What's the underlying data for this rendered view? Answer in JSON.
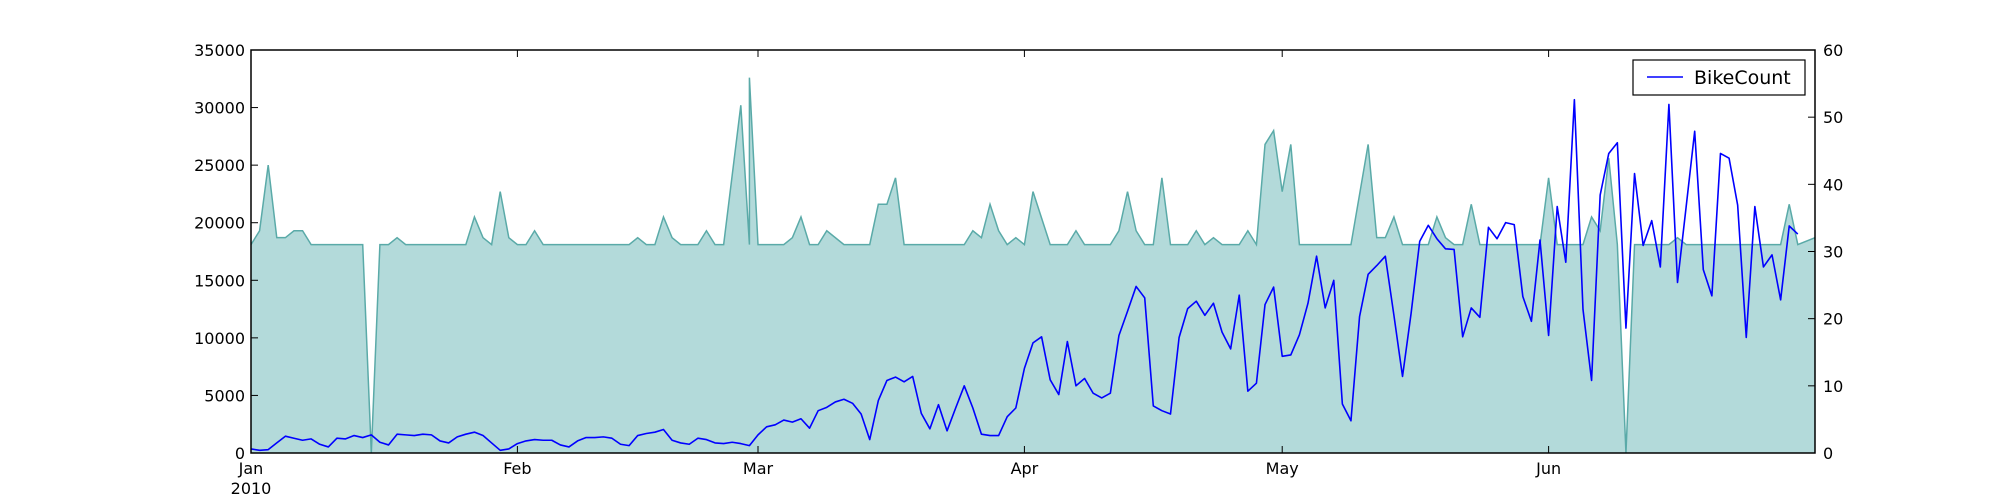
{
  "chart_data": {
    "type": "line",
    "x_start_label": "2010-01-01",
    "x_tick_labels": [
      {
        "date": "2010-01-01",
        "label": "Jan",
        "sublabel": "2010"
      },
      {
        "date": "2010-02-01",
        "label": "Feb",
        "sublabel": ""
      },
      {
        "date": "2010-03-01",
        "label": "Mar",
        "sublabel": ""
      },
      {
        "date": "2010-04-01",
        "label": "Apr",
        "sublabel": ""
      },
      {
        "date": "2010-05-01",
        "label": "May",
        "sublabel": ""
      },
      {
        "date": "2010-06-01",
        "label": "Jun",
        "sublabel": ""
      }
    ],
    "xlim": [
      "2010-01-01",
      "2010-07-02"
    ],
    "left_axis": {
      "ylim": [
        0,
        35000
      ],
      "ticks": [
        0,
        5000,
        10000,
        15000,
        20000,
        25000,
        30000,
        35000
      ]
    },
    "right_axis": {
      "ylim": [
        0,
        60
      ],
      "ticks": [
        0,
        10,
        20,
        30,
        40,
        50,
        60
      ]
    },
    "legend": {
      "placement": "top-right",
      "entries": [
        {
          "label": "BikeCount",
          "color": "#0000ff"
        }
      ]
    },
    "grid": false,
    "colors": {
      "area_fill": "#b3dada",
      "area_edge": "#5aaaa8",
      "line": "#0000ff"
    },
    "area_series": {
      "axis": "left",
      "points": [
        [
          "2010-01-01",
          18100
        ],
        [
          "2010-01-02",
          19300
        ],
        [
          "2010-01-03",
          25000
        ],
        [
          "2010-01-04",
          18700
        ],
        [
          "2010-01-05",
          18700
        ],
        [
          "2010-01-06",
          19300
        ],
        [
          "2010-01-07",
          19300
        ],
        [
          "2010-01-08",
          18100
        ],
        [
          "2010-01-14",
          18100
        ],
        [
          "2010-01-15",
          0
        ],
        [
          "2010-01-16",
          18100
        ],
        [
          "2010-01-17",
          18100
        ],
        [
          "2010-01-18",
          18700
        ],
        [
          "2010-01-19",
          18100
        ],
        [
          "2010-01-26",
          18100
        ],
        [
          "2010-01-27",
          20500
        ],
        [
          "2010-01-28",
          18700
        ],
        [
          "2010-01-29",
          18100
        ],
        [
          "2010-01-30",
          22700
        ],
        [
          "2010-01-31",
          18700
        ],
        [
          "2010-02-01",
          18100
        ],
        [
          "2010-02-02",
          18100
        ],
        [
          "2010-02-03",
          19300
        ],
        [
          "2010-02-04",
          18100
        ],
        [
          "2010-02-14",
          18100
        ],
        [
          "2010-02-15",
          18700
        ],
        [
          "2010-02-16",
          18100
        ],
        [
          "2010-02-17",
          18100
        ],
        [
          "2010-02-18",
          20500
        ],
        [
          "2010-02-19",
          18700
        ],
        [
          "2010-02-20",
          18100
        ],
        [
          "2010-02-22",
          18100
        ],
        [
          "2010-02-23",
          19300
        ],
        [
          "2010-02-24",
          18100
        ],
        [
          "2010-02-28",
          18100
        ],
        [
          "2010-03-01",
          18100
        ],
        [
          "2010-02-25",
          18100
        ],
        [
          "2010-02-27",
          30200
        ],
        [
          "2010-02-28",
          32600
        ],
        [
          "2010-03-01",
          18100
        ],
        [
          "2010-03-04",
          18100
        ],
        [
          "2010-03-05",
          18700
        ],
        [
          "2010-03-06",
          20500
        ],
        [
          "2010-03-07",
          18100
        ],
        [
          "2010-03-08",
          18100
        ],
        [
          "2010-03-09",
          19300
        ],
        [
          "2010-03-11",
          18100
        ],
        [
          "2010-03-14",
          18100
        ],
        [
          "2010-03-15",
          21600
        ],
        [
          "2010-03-16",
          21600
        ],
        [
          "2010-03-17",
          23900
        ],
        [
          "2010-03-18",
          18100
        ],
        [
          "2010-03-25",
          18100
        ],
        [
          "2010-03-26",
          19300
        ],
        [
          "2010-03-27",
          18700
        ],
        [
          "2010-03-28",
          21600
        ],
        [
          "2010-03-29",
          19300
        ],
        [
          "2010-03-30",
          18100
        ],
        [
          "2010-03-31",
          18700
        ],
        [
          "2010-04-01",
          18100
        ],
        [
          "2010-04-02",
          22700
        ],
        [
          "2010-04-04",
          18100
        ],
        [
          "2010-04-06",
          18100
        ],
        [
          "2010-04-07",
          19300
        ],
        [
          "2010-04-08",
          18100
        ],
        [
          "2010-04-11",
          18100
        ],
        [
          "2010-04-12",
          19300
        ],
        [
          "2010-04-13",
          22700
        ],
        [
          "2010-04-14",
          19300
        ],
        [
          "2010-04-15",
          18100
        ],
        [
          "2010-04-16",
          18100
        ],
        [
          "2010-04-17",
          23900
        ],
        [
          "2010-04-18",
          18100
        ],
        [
          "2010-04-20",
          18100
        ],
        [
          "2010-04-21",
          19300
        ],
        [
          "2010-04-22",
          18100
        ],
        [
          "2010-04-23",
          18700
        ],
        [
          "2010-04-24",
          18100
        ],
        [
          "2010-04-26",
          18100
        ],
        [
          "2010-04-27",
          19300
        ],
        [
          "2010-04-28",
          18100
        ],
        [
          "2010-04-29",
          26800
        ],
        [
          "2010-04-30",
          28000
        ],
        [
          "2010-05-01",
          22700
        ],
        [
          "2010-05-02",
          26800
        ],
        [
          "2010-05-03",
          18100
        ],
        [
          "2010-05-09",
          18100
        ],
        [
          "2010-05-11",
          26800
        ],
        [
          "2010-05-12",
          18700
        ],
        [
          "2010-05-13",
          18700
        ],
        [
          "2010-05-14",
          20500
        ],
        [
          "2010-05-15",
          18100
        ],
        [
          "2010-05-18",
          18100
        ],
        [
          "2010-05-19",
          20500
        ],
        [
          "2010-05-20",
          18700
        ],
        [
          "2010-05-21",
          18100
        ],
        [
          "2010-05-22",
          18100
        ],
        [
          "2010-05-23",
          21600
        ],
        [
          "2010-05-24",
          18100
        ],
        [
          "2010-05-31",
          18100
        ],
        [
          "2010-06-01",
          23900
        ],
        [
          "2010-06-02",
          18100
        ],
        [
          "2010-06-05",
          18100
        ],
        [
          "2010-06-06",
          20500
        ],
        [
          "2010-06-07",
          19300
        ],
        [
          "2010-06-08",
          25600
        ],
        [
          "2010-06-09",
          18100
        ],
        [
          "2010-06-10",
          0
        ],
        [
          "2010-06-11",
          18100
        ],
        [
          "2010-06-15",
          18100
        ],
        [
          "2010-06-16",
          18700
        ],
        [
          "2010-06-17",
          18100
        ],
        [
          "2010-06-28",
          18100
        ],
        [
          "2010-06-29",
          21600
        ],
        [
          "2010-06-30",
          18100
        ],
        [
          "2010-07-02",
          18700
        ]
      ]
    },
    "line_series": {
      "name": "BikeCount",
      "axis": "right",
      "points": [
        [
          "2010-01-01",
          0.6
        ],
        [
          "2010-01-02",
          0.4
        ],
        [
          "2010-01-03",
          0.5
        ],
        [
          "2010-01-04",
          1.5
        ],
        [
          "2010-01-05",
          2.5
        ],
        [
          "2010-01-06",
          2.2
        ],
        [
          "2010-01-07",
          1.9
        ],
        [
          "2010-01-08",
          2.1
        ],
        [
          "2010-01-09",
          1.3
        ],
        [
          "2010-01-10",
          0.9
        ],
        [
          "2010-01-11",
          2.2
        ],
        [
          "2010-01-12",
          2.1
        ],
        [
          "2010-01-13",
          2.6
        ],
        [
          "2010-01-14",
          2.3
        ],
        [
          "2010-01-15",
          2.7
        ],
        [
          "2010-01-16",
          1.6
        ],
        [
          "2010-01-17",
          1.2
        ],
        [
          "2010-01-18",
          2.8
        ],
        [
          "2010-01-19",
          2.7
        ],
        [
          "2010-01-20",
          2.6
        ],
        [
          "2010-01-21",
          2.8
        ],
        [
          "2010-01-22",
          2.7
        ],
        [
          "2010-01-23",
          1.8
        ],
        [
          "2010-01-24",
          1.5
        ],
        [
          "2010-01-25",
          2.4
        ],
        [
          "2010-01-26",
          2.8
        ],
        [
          "2010-01-27",
          3.1
        ],
        [
          "2010-01-28",
          2.6
        ],
        [
          "2010-01-29",
          1.5
        ],
        [
          "2010-01-30",
          0.4
        ],
        [
          "2010-01-31",
          0.6
        ],
        [
          "2010-02-01",
          1.4
        ],
        [
          "2010-02-02",
          1.8
        ],
        [
          "2010-02-03",
          2.0
        ],
        [
          "2010-02-04",
          1.9
        ],
        [
          "2010-02-05",
          1.9
        ],
        [
          "2010-02-06",
          1.2
        ],
        [
          "2010-02-07",
          0.9
        ],
        [
          "2010-02-08",
          1.8
        ],
        [
          "2010-02-09",
          2.3
        ],
        [
          "2010-02-10",
          2.3
        ],
        [
          "2010-02-11",
          2.4
        ],
        [
          "2010-02-12",
          2.2
        ],
        [
          "2010-02-13",
          1.3
        ],
        [
          "2010-02-14",
          1.1
        ],
        [
          "2010-02-15",
          2.6
        ],
        [
          "2010-02-16",
          2.9
        ],
        [
          "2010-02-17",
          3.1
        ],
        [
          "2010-02-18",
          3.5
        ],
        [
          "2010-02-19",
          1.9
        ],
        [
          "2010-02-20",
          1.5
        ],
        [
          "2010-02-21",
          1.3
        ],
        [
          "2010-02-22",
          2.2
        ],
        [
          "2010-02-23",
          2.0
        ],
        [
          "2010-02-24",
          1.5
        ],
        [
          "2010-02-25",
          1.4
        ],
        [
          "2010-02-26",
          1.6
        ],
        [
          "2010-02-27",
          1.4
        ],
        [
          "2010-02-28",
          1.1
        ],
        [
          "2010-03-01",
          2.7
        ],
        [
          "2010-03-02",
          3.9
        ],
        [
          "2010-03-03",
          4.2
        ],
        [
          "2010-03-04",
          4.9
        ],
        [
          "2010-03-05",
          4.6
        ],
        [
          "2010-03-06",
          5.1
        ],
        [
          "2010-03-07",
          3.7
        ],
        [
          "2010-03-08",
          6.3
        ],
        [
          "2010-03-09",
          6.8
        ],
        [
          "2010-03-10",
          7.6
        ],
        [
          "2010-03-11",
          8.0
        ],
        [
          "2010-03-12",
          7.4
        ],
        [
          "2010-03-13",
          5.8
        ],
        [
          "2010-03-14",
          2.0
        ],
        [
          "2010-03-15",
          7.8
        ],
        [
          "2010-03-16",
          10.8
        ],
        [
          "2010-03-17",
          11.3
        ],
        [
          "2010-03-18",
          10.6
        ],
        [
          "2010-03-19",
          11.4
        ],
        [
          "2010-03-20",
          5.9
        ],
        [
          "2010-03-21",
          3.6
        ],
        [
          "2010-03-22",
          7.2
        ],
        [
          "2010-03-23",
          3.3
        ],
        [
          "2010-03-24",
          6.7
        ],
        [
          "2010-03-25",
          10.0
        ],
        [
          "2010-03-26",
          6.7
        ],
        [
          "2010-03-27",
          2.8
        ],
        [
          "2010-03-28",
          2.6
        ],
        [
          "2010-03-29",
          2.6
        ],
        [
          "2010-03-30",
          5.4
        ],
        [
          "2010-03-31",
          6.7
        ],
        [
          "2010-04-01",
          12.6
        ],
        [
          "2010-04-02",
          16.4
        ],
        [
          "2010-04-03",
          17.3
        ],
        [
          "2010-04-04",
          10.9
        ],
        [
          "2010-04-05",
          8.7
        ],
        [
          "2010-04-06",
          16.6
        ],
        [
          "2010-04-07",
          10.0
        ],
        [
          "2010-04-08",
          11.1
        ],
        [
          "2010-04-09",
          8.9
        ],
        [
          "2010-04-10",
          8.2
        ],
        [
          "2010-04-11",
          8.9
        ],
        [
          "2010-04-12",
          17.5
        ],
        [
          "2010-04-13",
          21.1
        ],
        [
          "2010-04-14",
          24.8
        ],
        [
          "2010-04-15",
          23.1
        ],
        [
          "2010-04-16",
          7.0
        ],
        [
          "2010-04-17",
          6.3
        ],
        [
          "2010-04-18",
          5.8
        ],
        [
          "2010-04-19",
          17.2
        ],
        [
          "2010-04-20",
          21.5
        ],
        [
          "2010-04-21",
          22.6
        ],
        [
          "2010-04-22",
          20.5
        ],
        [
          "2010-04-23",
          22.3
        ],
        [
          "2010-04-24",
          18.0
        ],
        [
          "2010-04-25",
          15.5
        ],
        [
          "2010-04-26",
          23.5
        ],
        [
          "2010-04-27",
          9.2
        ],
        [
          "2010-04-28",
          10.4
        ],
        [
          "2010-04-29",
          22.1
        ],
        [
          "2010-04-30",
          24.7
        ],
        [
          "2010-05-01",
          14.4
        ],
        [
          "2010-05-02",
          14.6
        ],
        [
          "2010-05-03",
          17.6
        ],
        [
          "2010-05-04",
          22.3
        ],
        [
          "2010-05-05",
          29.3
        ],
        [
          "2010-05-06",
          21.6
        ],
        [
          "2010-05-07",
          25.7
        ],
        [
          "2010-05-08",
          7.3
        ],
        [
          "2010-05-09",
          4.8
        ],
        [
          "2010-05-10",
          20.3
        ],
        [
          "2010-05-11",
          26.6
        ],
        [
          "2010-05-12",
          27.9
        ],
        [
          "2010-05-13",
          29.3
        ],
        [
          "2010-05-14",
          20.5
        ],
        [
          "2010-05-15",
          11.4
        ],
        [
          "2010-05-16",
          20.8
        ],
        [
          "2010-05-17",
          31.5
        ],
        [
          "2010-05-18",
          33.9
        ],
        [
          "2010-05-19",
          31.9
        ],
        [
          "2010-05-20",
          30.4
        ],
        [
          "2010-05-21",
          30.3
        ],
        [
          "2010-05-22",
          17.3
        ],
        [
          "2010-05-23",
          21.6
        ],
        [
          "2010-05-24",
          20.2
        ],
        [
          "2010-05-25",
          33.6
        ],
        [
          "2010-05-26",
          31.9
        ],
        [
          "2010-05-27",
          34.3
        ],
        [
          "2010-05-28",
          34.0
        ],
        [
          "2010-05-29",
          23.3
        ],
        [
          "2010-05-30",
          19.6
        ],
        [
          "2010-05-31",
          31.7
        ],
        [
          "2010-06-01",
          17.5
        ],
        [
          "2010-06-02",
          36.7
        ],
        [
          "2010-06-03",
          28.4
        ],
        [
          "2010-06-04",
          52.6
        ],
        [
          "2010-06-05",
          21.4
        ],
        [
          "2010-06-06",
          10.8
        ],
        [
          "2010-06-07",
          38.4
        ],
        [
          "2010-06-08",
          44.6
        ],
        [
          "2010-06-09",
          46.2
        ],
        [
          "2010-06-10",
          18.6
        ],
        [
          "2010-06-11",
          41.6
        ],
        [
          "2010-06-12",
          30.9
        ],
        [
          "2010-06-13",
          34.6
        ],
        [
          "2010-06-14",
          27.7
        ],
        [
          "2010-06-15",
          51.9
        ],
        [
          "2010-06-16",
          25.4
        ],
        [
          "2010-06-17",
          36.6
        ],
        [
          "2010-06-18",
          47.9
        ],
        [
          "2010-06-19",
          27.3
        ],
        [
          "2010-06-20",
          23.4
        ],
        [
          "2010-06-21",
          44.6
        ],
        [
          "2010-06-22",
          43.9
        ],
        [
          "2010-06-23",
          36.9
        ],
        [
          "2010-06-24",
          17.2
        ],
        [
          "2010-06-25",
          36.7
        ],
        [
          "2010-06-26",
          27.7
        ],
        [
          "2010-06-27",
          29.5
        ],
        [
          "2010-06-28",
          22.8
        ],
        [
          "2010-06-29",
          33.8
        ],
        [
          "2010-06-30",
          32.6
        ]
      ]
    }
  }
}
